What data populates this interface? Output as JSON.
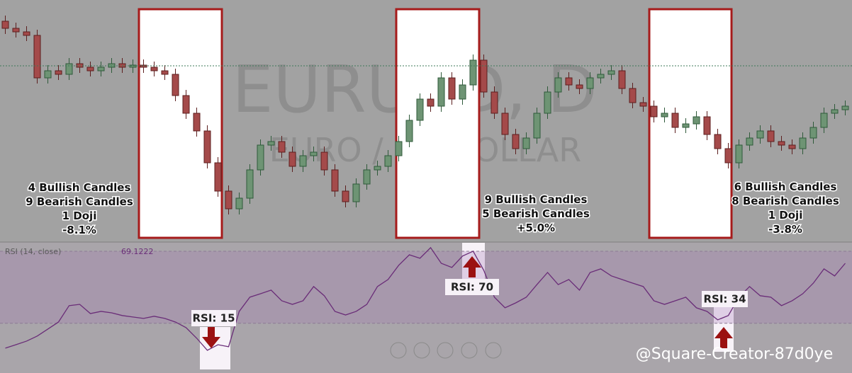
{
  "chart_data": [
    {
      "type": "candlestick",
      "title": "EURUSD, D",
      "subtitle": "EURO / US DOLLAR",
      "ylim": [
        1.06,
        1.128
      ],
      "price_line": 1.1094,
      "colors": {
        "up": "#6e9474",
        "down": "#a44a4a"
      },
      "open": [
        1.122,
        1.12,
        1.119,
        1.118,
        1.106,
        1.108,
        1.107,
        1.11,
        1.109,
        1.108,
        1.109,
        1.11,
        1.109,
        1.1096,
        1.109,
        1.108,
        1.107,
        1.101,
        1.096,
        1.091,
        1.082,
        1.074,
        1.069,
        1.072,
        1.08,
        1.087,
        1.088,
        1.085,
        1.081,
        1.084,
        1.085,
        1.08,
        1.074,
        1.071,
        1.076,
        1.08,
        1.081,
        1.084,
        1.088,
        1.094,
        1.1,
        1.098,
        1.106,
        1.1,
        1.104,
        1.111,
        1.102,
        1.096,
        1.09,
        1.086,
        1.089,
        1.096,
        1.102,
        1.106,
        1.104,
        1.103,
        1.106,
        1.107,
        1.108,
        1.103,
        1.099,
        1.098,
        1.095,
        1.096,
        1.092,
        1.093,
        1.095,
        1.09,
        1.086,
        1.082,
        1.087,
        1.089,
        1.091,
        1.088,
        1.087,
        1.086,
        1.089,
        1.092,
        1.096,
        1.097
      ],
      "high": [
        1.1236,
        1.1216,
        1.1206,
        1.1196,
        1.1096,
        1.1096,
        1.1116,
        1.1116,
        1.1106,
        1.1106,
        1.1116,
        1.1116,
        1.1112,
        1.1112,
        1.1106,
        1.1096,
        1.1086,
        1.1026,
        1.0976,
        1.0926,
        1.0836,
        1.0756,
        1.0736,
        1.0816,
        1.0886,
        1.0896,
        1.0896,
        1.0866,
        1.0856,
        1.0866,
        1.0866,
        1.0816,
        1.0756,
        1.0776,
        1.0816,
        1.0826,
        1.0856,
        1.0896,
        1.0956,
        1.1016,
        1.1016,
        1.1076,
        1.1076,
        1.1056,
        1.1126,
        1.1126,
        1.1036,
        1.0976,
        1.0916,
        1.0906,
        1.0976,
        1.1036,
        1.1076,
        1.1076,
        1.1056,
        1.1076,
        1.1086,
        1.1096,
        1.1096,
        1.1046,
        1.1006,
        1.0996,
        1.0976,
        1.0976,
        1.0946,
        1.0966,
        1.0966,
        1.0916,
        1.0876,
        1.0886,
        1.0906,
        1.0926,
        1.0926,
        1.0896,
        1.0886,
        1.0906,
        1.0936,
        1.0976,
        1.0986,
        1.0996
      ],
      "low": [
        1.1184,
        1.1174,
        1.1164,
        1.1044,
        1.1044,
        1.1054,
        1.1054,
        1.1074,
        1.1064,
        1.1064,
        1.1074,
        1.1074,
        1.1074,
        1.1074,
        1.1064,
        1.1054,
        1.0994,
        1.0944,
        1.0894,
        1.0804,
        1.0724,
        1.0674,
        1.0674,
        1.0704,
        1.0784,
        1.0854,
        1.0834,
        1.0794,
        1.0794,
        1.0824,
        1.0784,
        1.0724,
        1.0694,
        1.0694,
        1.0744,
        1.0784,
        1.0794,
        1.0824,
        1.0864,
        1.0924,
        1.0964,
        1.0964,
        1.0984,
        1.0984,
        1.1024,
        1.1004,
        1.0944,
        1.0884,
        1.0844,
        1.0844,
        1.0874,
        1.0944,
        1.1004,
        1.1024,
        1.1014,
        1.1014,
        1.1044,
        1.1054,
        1.1014,
        1.0974,
        1.0964,
        1.0934,
        1.0934,
        1.0904,
        1.0904,
        1.0914,
        1.0884,
        1.0844,
        1.0804,
        1.0804,
        1.0854,
        1.0874,
        1.0864,
        1.0854,
        1.0844,
        1.0844,
        1.0874,
        1.0904,
        1.0944,
        1.0954
      ],
      "close": [
        1.12,
        1.119,
        1.118,
        1.106,
        1.108,
        1.107,
        1.11,
        1.109,
        1.108,
        1.109,
        1.11,
        1.109,
        1.1096,
        1.109,
        1.108,
        1.107,
        1.101,
        1.096,
        1.091,
        1.082,
        1.074,
        1.069,
        1.072,
        1.08,
        1.087,
        1.088,
        1.085,
        1.081,
        1.084,
        1.085,
        1.08,
        1.074,
        1.071,
        1.076,
        1.08,
        1.081,
        1.084,
        1.088,
        1.094,
        1.1,
        1.098,
        1.106,
        1.1,
        1.104,
        1.111,
        1.102,
        1.096,
        1.09,
        1.086,
        1.089,
        1.096,
        1.102,
        1.106,
        1.104,
        1.103,
        1.106,
        1.107,
        1.108,
        1.103,
        1.099,
        1.098,
        1.095,
        1.096,
        1.092,
        1.093,
        1.095,
        1.09,
        1.086,
        1.082,
        1.087,
        1.089,
        1.091,
        1.088,
        1.087,
        1.086,
        1.089,
        1.092,
        1.096,
        1.097,
        1.098
      ],
      "summaries": [
        {
          "lines": [
            "4 Bullish Candles",
            "9 Bearish Candles",
            "1 Doji",
            "-8.1%"
          ]
        },
        {
          "lines": [
            "9 Bullish Candles",
            "5 Bearish Candles",
            "+5.0%"
          ]
        },
        {
          "lines": [
            "6 Bullish Candles",
            "8 Bearish Candles",
            "1 Doji",
            "-3.8%"
          ]
        }
      ]
    },
    {
      "type": "line",
      "title": "RSI (14, close)",
      "last_value": 69.1222,
      "ylim": [
        2.4,
        74.7
      ],
      "bands": [
        30,
        70
      ],
      "series": [
        {
          "name": "RSI",
          "color": "#6a2d78",
          "values": [
            16.2,
            18.1,
            20.1,
            22.9,
            26.8,
            30.7,
            39.8,
            40.5,
            35.4,
            36.6,
            35.8,
            34.3,
            33.5,
            32.7,
            33.9,
            32.7,
            30.7,
            27.6,
            21.7,
            15.0,
            18.1,
            17.0,
            36.6,
            44.5,
            46.4,
            48.4,
            42.5,
            40.5,
            42.5,
            50.4,
            45.3,
            36.6,
            34.6,
            36.6,
            40.5,
            50.4,
            54.3,
            62.2,
            68.0,
            66.1,
            72.0,
            63.3,
            61.0,
            67.3,
            70.0,
            59.4,
            44.5,
            38.6,
            41.3,
            44.5,
            51.5,
            58.2,
            51.5,
            54.3,
            48.4,
            58.2,
            60.2,
            56.3,
            54.3,
            52.3,
            50.4,
            42.5,
            40.5,
            42.5,
            44.5,
            38.6,
            36.6,
            31.9,
            34.3,
            44.5,
            50.4,
            45.3,
            44.5,
            39.8,
            42.5,
            46.4,
            52.3,
            60.2,
            56.3,
            63.3
          ]
        }
      ],
      "annotations": [
        "RSI: 15",
        "RSI: 70",
        "RSI: 34"
      ]
    },
    {
      "type": "watermark",
      "text": "@Square-Creator-87d0ye"
    }
  ]
}
